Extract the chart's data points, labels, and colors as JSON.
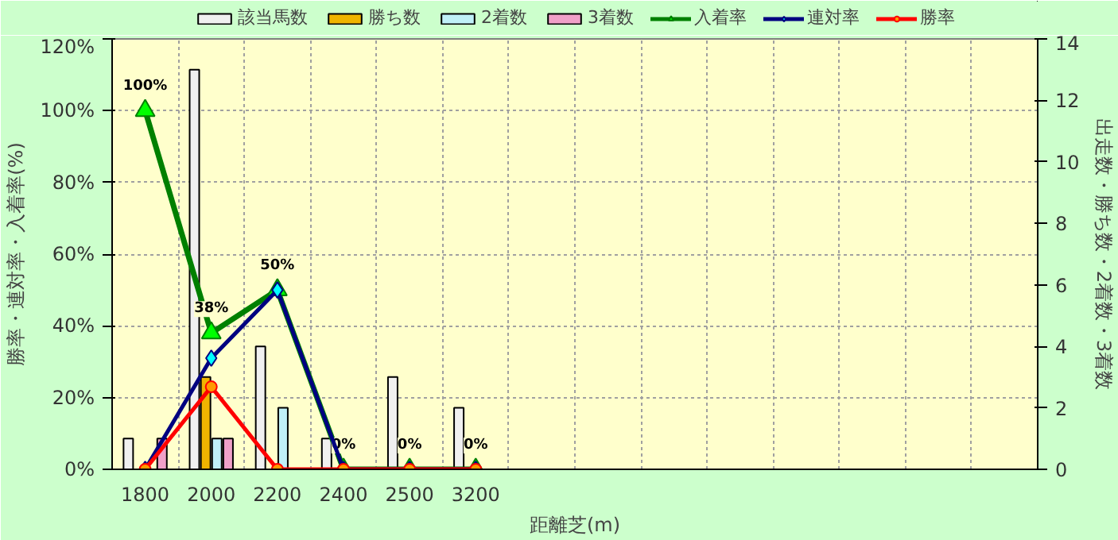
{
  "chart_data": {
    "type": "bar",
    "xlabel": "距離芝(m)",
    "ylabel": "勝率・連対率・入着率(%)",
    "y2label": "出走数・勝ち数・2着数・3着数",
    "categories": [
      "1800",
      "2000",
      "2200",
      "2400",
      "2500",
      "3200",
      null,
      null,
      null,
      null,
      null,
      null,
      null,
      null
    ],
    "ylim": [
      0,
      120
    ],
    "yticks": [
      {
        "value": 0,
        "label": "0%"
      },
      {
        "value": 20,
        "label": "20%"
      },
      {
        "value": 40,
        "label": "40%"
      },
      {
        "value": 60,
        "label": "60%"
      },
      {
        "value": 80,
        "label": "80%"
      },
      {
        "value": 100,
        "label": "100%"
      },
      {
        "value": 120,
        "label": "120%"
      }
    ],
    "y2lim": [
      0,
      14
    ],
    "y2ticks": [
      0,
      2,
      4,
      6,
      8,
      10,
      12,
      14
    ],
    "grid": true,
    "legend": "top",
    "series": [
      {
        "name": "該当馬数",
        "axis": "y2",
        "color": "#f0f0f0",
        "values": [
          1,
          13,
          4,
          1,
          3,
          2,
          null,
          null,
          null,
          null,
          null,
          null,
          null,
          null
        ]
      },
      {
        "name": "勝ち数",
        "axis": "y2",
        "color": "#f0b400",
        "values": [
          0,
          3,
          0,
          0,
          0,
          0,
          null,
          null,
          null,
          null,
          null,
          null,
          null,
          null
        ]
      },
      {
        "name": "2着数",
        "axis": "y2",
        "color": "#c0f0f8",
        "values": [
          0,
          1,
          2,
          0,
          0,
          0,
          null,
          null,
          null,
          null,
          null,
          null,
          null,
          null
        ]
      },
      {
        "name": "3着数",
        "axis": "y2",
        "color": "#f0a0c8",
        "values": [
          1,
          1,
          0,
          0,
          0,
          0,
          null,
          null,
          null,
          null,
          null,
          null,
          null,
          null
        ]
      },
      {
        "name": "入着率",
        "type": "line",
        "axis": "y",
        "color": "#008000",
        "marker": "triangle",
        "values": [
          100,
          38,
          50,
          0,
          0,
          0,
          null,
          null,
          null,
          null,
          null,
          null,
          null,
          null
        ],
        "value_labels": [
          "100%",
          "38%",
          "50%",
          "0%",
          "0%",
          "0%",
          null,
          null,
          null,
          null,
          null,
          null,
          null,
          null
        ]
      },
      {
        "name": "連対率",
        "type": "line",
        "axis": "y",
        "color": "#000080",
        "marker": "diamond",
        "values": [
          0,
          31,
          50,
          0,
          0,
          0,
          null,
          null,
          null,
          null,
          null,
          null,
          null,
          null
        ]
      },
      {
        "name": "勝率",
        "type": "line",
        "axis": "y",
        "color": "#ff0000",
        "marker": "circle",
        "values": [
          0,
          23,
          0,
          0,
          0,
          0,
          null,
          null,
          null,
          null,
          null,
          null,
          null,
          null
        ]
      }
    ]
  }
}
